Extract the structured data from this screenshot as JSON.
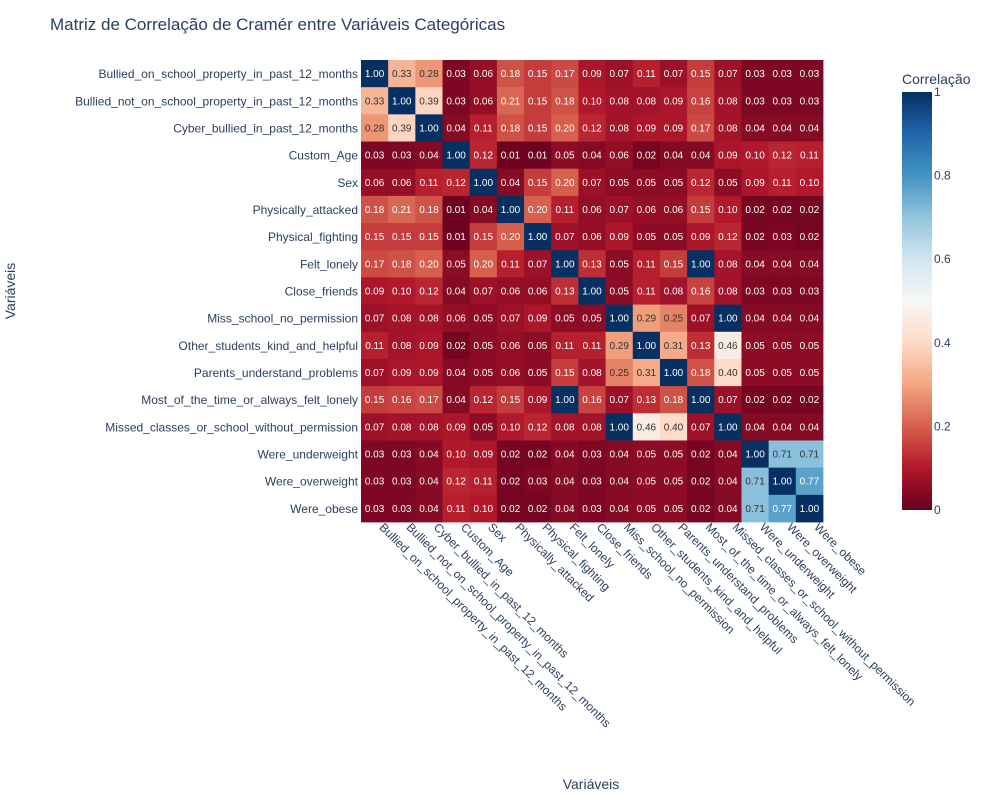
{
  "chart_data": {
    "type": "heatmap",
    "title": "Matriz de Correlação de Cramér entre Variáveis Categóricas",
    "xlabel": "Variáveis",
    "ylabel": "Variáveis",
    "colorbar": {
      "title": "Correlação",
      "range": [
        0,
        1
      ],
      "ticks": [
        "0",
        "0.2",
        "0.4",
        "0.6",
        "0.8",
        "1"
      ],
      "colorscale": [
        "#67001f",
        "#b2182b",
        "#d6604d",
        "#f4a582",
        "#fddbc7",
        "#f7f7f7",
        "#d1e5f0",
        "#92c5de",
        "#4393c3",
        "#2166ac",
        "#053061"
      ]
    },
    "variables": [
      "Bullied_on_school_property_in_past_12_months",
      "Bullied_not_on_school_property_in_past_12_months",
      "Cyber_bullied_in_past_12_months",
      "Custom_Age",
      "Sex",
      "Physically_attacked",
      "Physical_fighting",
      "Felt_lonely",
      "Close_friends",
      "Miss_school_no_permission",
      "Other_students_kind_and_helpful",
      "Parents_understand_problems",
      "Most_of_the_time_or_always_felt_lonely",
      "Missed_classes_or_school_without_permission",
      "Were_underweight",
      "Were_overweight",
      "Were_obese"
    ],
    "matrix": [
      [
        1.0,
        0.33,
        0.28,
        0.03,
        0.06,
        0.18,
        0.15,
        0.17,
        0.09,
        0.07,
        0.11,
        0.07,
        0.15,
        0.07,
        0.03,
        0.03,
        0.03
      ],
      [
        0.33,
        1.0,
        0.39,
        0.03,
        0.06,
        0.21,
        0.15,
        0.18,
        0.1,
        0.08,
        0.08,
        0.09,
        0.16,
        0.08,
        0.03,
        0.03,
        0.03
      ],
      [
        0.28,
        0.39,
        1.0,
        0.04,
        0.11,
        0.18,
        0.15,
        0.2,
        0.12,
        0.08,
        0.09,
        0.09,
        0.17,
        0.08,
        0.04,
        0.04,
        0.04
      ],
      [
        0.03,
        0.03,
        0.04,
        1.0,
        0.12,
        0.01,
        0.01,
        0.05,
        0.04,
        0.06,
        0.02,
        0.04,
        0.04,
        0.09,
        0.1,
        0.12,
        0.11
      ],
      [
        0.06,
        0.06,
        0.11,
        0.12,
        1.0,
        0.04,
        0.15,
        0.2,
        0.07,
        0.05,
        0.05,
        0.05,
        0.12,
        0.05,
        0.09,
        0.11,
        0.1
      ],
      [
        0.18,
        0.21,
        0.18,
        0.01,
        0.04,
        1.0,
        0.2,
        0.11,
        0.06,
        0.07,
        0.06,
        0.06,
        0.15,
        0.1,
        0.02,
        0.02,
        0.02
      ],
      [
        0.15,
        0.15,
        0.15,
        0.01,
        0.15,
        0.2,
        1.0,
        0.07,
        0.06,
        0.09,
        0.05,
        0.05,
        0.09,
        0.12,
        0.02,
        0.03,
        0.02
      ],
      [
        0.17,
        0.18,
        0.2,
        0.05,
        0.2,
        0.11,
        0.07,
        1.0,
        0.13,
        0.05,
        0.11,
        0.15,
        1.0,
        0.08,
        0.04,
        0.04,
        0.04
      ],
      [
        0.09,
        0.1,
        0.12,
        0.04,
        0.07,
        0.06,
        0.06,
        0.13,
        1.0,
        0.05,
        0.11,
        0.08,
        0.16,
        0.08,
        0.03,
        0.03,
        0.03
      ],
      [
        0.07,
        0.08,
        0.08,
        0.06,
        0.05,
        0.07,
        0.09,
        0.05,
        0.05,
        1.0,
        0.29,
        0.25,
        0.07,
        1.0,
        0.04,
        0.04,
        0.04
      ],
      [
        0.11,
        0.08,
        0.09,
        0.02,
        0.05,
        0.06,
        0.05,
        0.11,
        0.11,
        0.29,
        1.0,
        0.31,
        0.13,
        0.46,
        0.05,
        0.05,
        0.05
      ],
      [
        0.07,
        0.09,
        0.09,
        0.04,
        0.05,
        0.06,
        0.05,
        0.15,
        0.08,
        0.25,
        0.31,
        1.0,
        0.18,
        0.4,
        0.05,
        0.05,
        0.05
      ],
      [
        0.15,
        0.16,
        0.17,
        0.04,
        0.12,
        0.15,
        0.09,
        1.0,
        0.16,
        0.07,
        0.13,
        0.18,
        1.0,
        0.07,
        0.02,
        0.02,
        0.02
      ],
      [
        0.07,
        0.08,
        0.08,
        0.09,
        0.05,
        0.1,
        0.12,
        0.08,
        0.08,
        1.0,
        0.46,
        0.4,
        0.07,
        1.0,
        0.04,
        0.04,
        0.04
      ],
      [
        0.03,
        0.03,
        0.04,
        0.1,
        0.09,
        0.02,
        0.02,
        0.04,
        0.03,
        0.04,
        0.05,
        0.05,
        0.02,
        0.04,
        1.0,
        0.71,
        0.71
      ],
      [
        0.03,
        0.03,
        0.04,
        0.12,
        0.11,
        0.02,
        0.03,
        0.04,
        0.03,
        0.04,
        0.05,
        0.05,
        0.02,
        0.04,
        0.71,
        1.0,
        0.77
      ],
      [
        0.03,
        0.03,
        0.04,
        0.11,
        0.1,
        0.02,
        0.02,
        0.04,
        0.03,
        0.04,
        0.05,
        0.05,
        0.02,
        0.04,
        0.71,
        0.77,
        1.0
      ]
    ]
  }
}
